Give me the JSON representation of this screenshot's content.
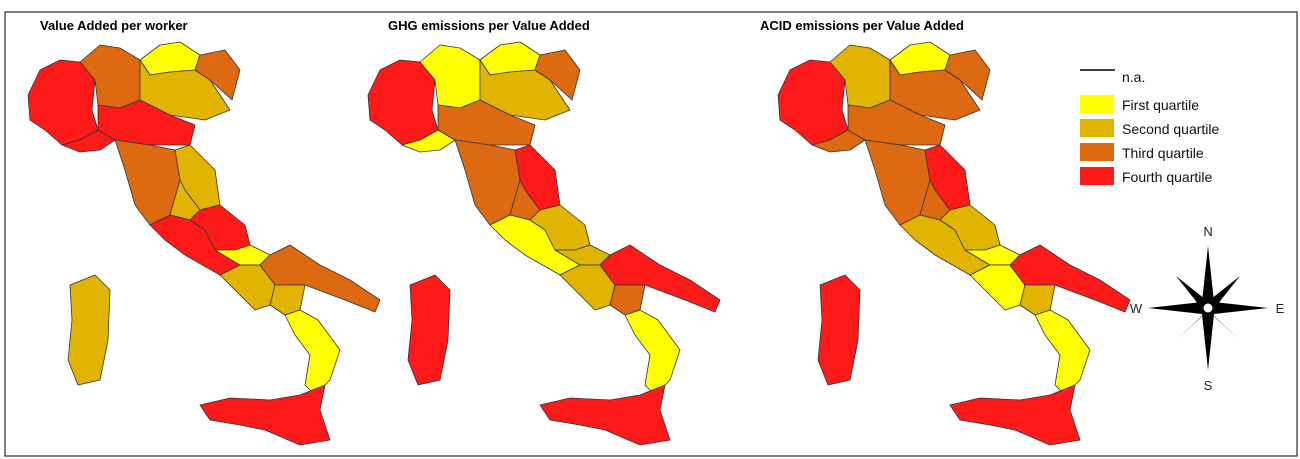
{
  "titles": [
    "Value Added per worker",
    "GHG emissions per Value Added",
    "ACID emissions per Value Added"
  ],
  "legend": {
    "na": "n.a.",
    "items": [
      "First quartile",
      "Second quartile",
      "Third quartile",
      "Fourth quartile"
    ]
  },
  "compass": {
    "n": "N",
    "w": "W",
    "e": "E",
    "s": "S"
  }
}
